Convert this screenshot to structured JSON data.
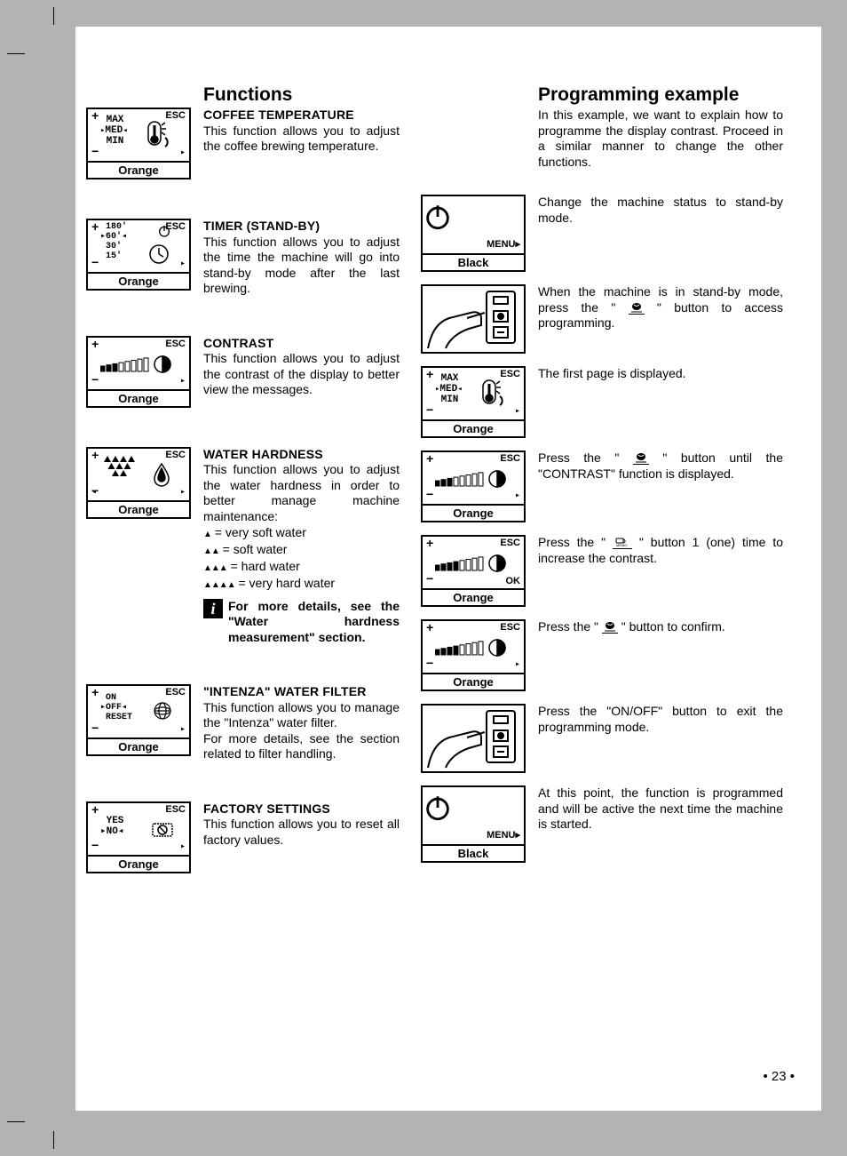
{
  "page_number": "• 23 •",
  "colors": {
    "page_bg": "#b3b3b3",
    "paper": "#ffffff",
    "text": "#000000"
  },
  "left": {
    "heading": "Functions",
    "items": [
      {
        "title": "COFFEE TEMPERATURE",
        "body": "This function allows you to adjust the coffee brewing temperature.",
        "display": {
          "type": "temp",
          "label": "Orange",
          "lines": [
            "MAX",
            "MED",
            "MIN"
          ],
          "selected": 1,
          "esc": "ESC",
          "corners": [
            "+",
            "−",
            "▸"
          ]
        }
      },
      {
        "title": "TIMER (STAND-BY)",
        "body": "This function allows you to adjust the time the machine will go into stand-by mode after the last brewing.",
        "display": {
          "type": "timer",
          "label": "Orange",
          "lines": [
            "180'",
            "60'",
            "30'",
            "15'"
          ],
          "selected": 1,
          "esc": "ESC",
          "corners": [
            "+",
            "−",
            "▸"
          ]
        }
      },
      {
        "title": "CONTRAST",
        "body": "This function allows you to adjust the contrast of the display to better view the messages.",
        "display": {
          "type": "contrast",
          "label": "Orange",
          "bar_fill": 3,
          "bar_total": 8,
          "esc": "ESC",
          "corners": [
            "+",
            "−",
            "▸"
          ]
        }
      },
      {
        "title": "WATER HARDNESS",
        "body": "This function allows you to adjust the water hardness in order to better manage machine maintenance:",
        "list": [
          {
            "marks": "▲",
            "text": " = very soft water"
          },
          {
            "marks": "▲▲",
            "text": " = soft water"
          },
          {
            "marks": "▲▲▲",
            "text": " = hard water"
          },
          {
            "marks": "▲▲▲▲",
            "text": " = very hard water"
          }
        ],
        "info": "For more details, see the \"Water hardness measurement\" section.",
        "display": {
          "type": "hardness",
          "label": "Orange",
          "esc": "ESC",
          "corners": [
            "+",
            "−",
            "◂",
            "▸"
          ]
        }
      },
      {
        "title": "\"INTENZA\" WATER FILTER",
        "body": "This function allows you to manage the \"Intenza\" water filter.\nFor more details, see the section related to filter handling.",
        "display": {
          "type": "intenza",
          "label": "Orange",
          "lines": [
            "ON",
            "OFF",
            "RESET"
          ],
          "selected": 1,
          "esc": "ESC",
          "corners": [
            "+",
            "−",
            "▸"
          ]
        }
      },
      {
        "title": "FACTORY SETTINGS",
        "body": "This function allows you to reset all factory values.",
        "display": {
          "type": "factory",
          "label": "Orange",
          "lines": [
            "YES",
            "NO"
          ],
          "selected": 1,
          "esc": "ESC",
          "corners": [
            "+",
            "−",
            "▸"
          ]
        }
      }
    ]
  },
  "right": {
    "heading": "Programming example",
    "intro": "In this example, we want to explain how to programme the display contrast. Proceed in a similar manner to change the other functions.",
    "steps": [
      {
        "text": "Change the machine status to stand-by mode.",
        "display": {
          "type": "standby",
          "label": "Black",
          "menu": "MENU▸"
        }
      },
      {
        "text_pre": "When the machine is in stand-by mode, press the \" ",
        "text_post": " \" button to access programming.",
        "icon": "bean-underline",
        "display": {
          "type": "hand"
        }
      },
      {
        "text": "The first page is displayed.",
        "display": {
          "type": "temp",
          "label": "Orange",
          "lines": [
            "MAX",
            "MED",
            "MIN"
          ],
          "selected": 1,
          "esc": "ESC",
          "corners": [
            "+",
            "−",
            "▸"
          ]
        }
      },
      {
        "text_pre": "Press the \" ",
        "text_post": " \" button until the \"CONTRAST\" function is displayed.",
        "icon": "bean-underline",
        "display": {
          "type": "contrast",
          "label": "Orange",
          "bar_fill": 3,
          "bar_total": 8,
          "esc": "ESC",
          "corners": [
            "+",
            "−",
            "▸"
          ]
        }
      },
      {
        "text_pre": "Press the \" ",
        "text_post": " \" button 1 (one) time to increase the contrast.",
        "icon": "cup-memo-underline",
        "display": {
          "type": "contrast",
          "label": "Orange",
          "bar_fill": 4,
          "bar_total": 8,
          "esc": "ESC",
          "corners": [
            "+",
            "−",
            "OK"
          ]
        }
      },
      {
        "text_pre": "Press the  \" ",
        "text_post": " \" button to confirm.",
        "icon": "bean-underline",
        "display": {
          "type": "contrast",
          "label": "Orange",
          "bar_fill": 4,
          "bar_total": 8,
          "esc": "ESC",
          "corners": [
            "+",
            "−",
            "▸"
          ]
        }
      },
      {
        "text": "Press the \"ON/OFF\" button to exit the programming mode.",
        "display": {
          "type": "hand"
        }
      },
      {
        "text": "At this point, the function is programmed and will be active the next time the machine is started.",
        "display": {
          "type": "standby",
          "label": "Black",
          "menu": "MENU▸"
        }
      }
    ]
  }
}
